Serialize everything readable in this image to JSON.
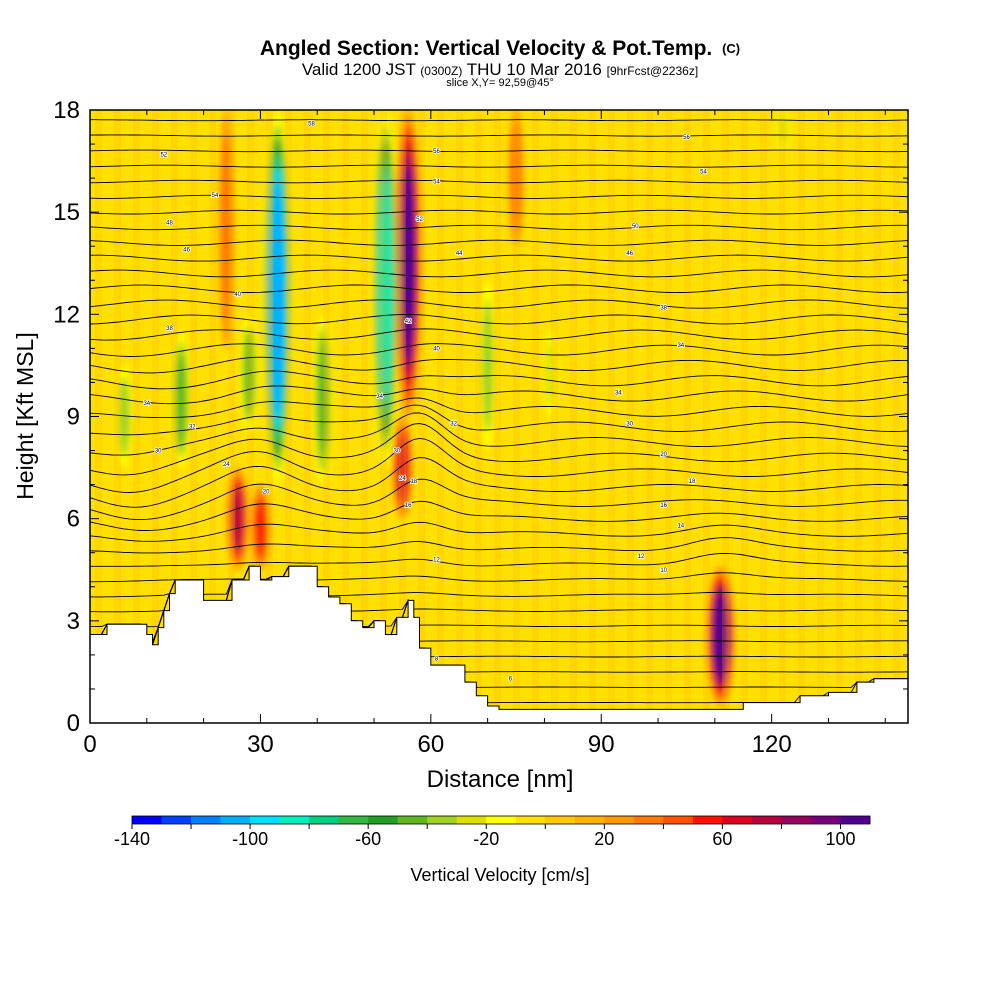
{
  "header": {
    "title": "Angled Section: Vertical Velocity & Pot.Temp.",
    "title_unit": "(C)",
    "valid_prefix": "Valid 1200 JST",
    "valid_utc": "(0300Z)",
    "valid_date": "THU 10 Mar 2016",
    "forecast_tag": "[9hrFcst@2236z]",
    "slice": "slice X,Y= 92,59@45°"
  },
  "chart_data": {
    "type": "heatmap",
    "xlabel": "Distance [nm]",
    "ylabel": "Height [Kft MSL]",
    "xlim": [
      0,
      144
    ],
    "ylim": [
      0,
      18
    ],
    "x_ticks": [
      0,
      30,
      60,
      90,
      120
    ],
    "y_ticks": [
      0,
      3,
      6,
      9,
      12,
      15,
      18
    ],
    "colorbar": {
      "label": "Vertical Velocity [cm/s]",
      "range": [
        -140,
        110
      ],
      "step": 10,
      "tick_values": [
        -140,
        -100,
        -60,
        -20,
        20,
        60,
        100
      ],
      "colors": [
        "#0000ff",
        "#0040ff",
        "#0080ff",
        "#00b0ff",
        "#00e0ff",
        "#00f0c0",
        "#00d080",
        "#30b840",
        "#20a020",
        "#60b820",
        "#a0d020",
        "#e0e000",
        "#ffff00",
        "#ffe000",
        "#ffc800",
        "#ffb000",
        "#ff9800",
        "#ff7800",
        "#ff5000",
        "#ff1000",
        "#e00020",
        "#b80040",
        "#980060",
        "#780080",
        "#500090"
      ]
    },
    "updrafts": [
      {
        "x": 26,
        "y_bottom": 4.5,
        "y_top": 7.5,
        "w": 70
      },
      {
        "x": 30,
        "y_bottom": 4.5,
        "y_top": 7.0,
        "w": 55
      },
      {
        "x": 56,
        "y_bottom": 9.0,
        "y_top": 18.0,
        "w": 100
      },
      {
        "x": 55,
        "y_bottom": 6.0,
        "y_top": 9.0,
        "w": 60
      },
      {
        "x": 111,
        "y_bottom": 0.5,
        "y_top": 4.6,
        "w": 110
      },
      {
        "x": 24,
        "y_bottom": 11.0,
        "y_top": 18.0,
        "w": 30
      },
      {
        "x": 75,
        "y_bottom": 14.0,
        "y_top": 18.0,
        "w": 30
      }
    ],
    "downdrafts": [
      {
        "x": 33,
        "y_bottom": 7.0,
        "y_top": 18.0,
        "w": -110
      },
      {
        "x": 52,
        "y_bottom": 7.5,
        "y_top": 18.0,
        "w": -90
      },
      {
        "x": 16,
        "y_bottom": 7.5,
        "y_top": 11.5,
        "w": -50
      },
      {
        "x": 6,
        "y_bottom": 7.5,
        "y_top": 10.5,
        "w": -40
      },
      {
        "x": 28,
        "y_bottom": 8.5,
        "y_top": 12.0,
        "w": -45
      },
      {
        "x": 41,
        "y_bottom": 7.0,
        "y_top": 12.0,
        "w": -50
      },
      {
        "x": 70,
        "y_bottom": 8.0,
        "y_top": 13.0,
        "w": -40
      },
      {
        "x": 81,
        "y_bottom": 9.0,
        "y_top": 11.5,
        "w": -25
      },
      {
        "x": 122,
        "y_bottom": 16.8,
        "y_top": 18.0,
        "w": -25
      }
    ],
    "terrain": {
      "x": [
        0,
        3,
        8,
        10,
        11,
        12,
        13,
        14,
        15,
        17,
        20,
        22,
        25,
        28,
        30,
        32,
        35,
        37,
        40,
        42,
        44,
        46,
        48,
        50,
        52,
        54,
        56,
        57,
        58,
        60,
        63,
        66,
        68,
        70,
        72,
        75,
        80,
        85,
        90,
        100,
        107,
        109,
        111,
        113,
        115,
        120,
        125,
        130,
        135,
        138,
        144
      ],
      "y": [
        2.6,
        2.9,
        2.9,
        2.6,
        2.3,
        2.8,
        3.3,
        3.8,
        4.2,
        4.2,
        3.6,
        3.6,
        4.2,
        4.6,
        4.2,
        4.3,
        4.6,
        4.6,
        4.0,
        3.7,
        3.5,
        3.0,
        2.8,
        3.0,
        2.6,
        3.1,
        3.6,
        3.1,
        2.2,
        1.7,
        1.7,
        1.2,
        0.8,
        0.5,
        0.4,
        0.4,
        0.4,
        0.4,
        0.4,
        0.4,
        0.4,
        0.4,
        0.4,
        0.4,
        0.6,
        0.6,
        0.8,
        0.9,
        1.2,
        1.3,
        1.3
      ]
    },
    "contour_labels": [
      {
        "x": 13,
        "y": 16.7,
        "text": "52"
      },
      {
        "x": 22,
        "y": 15.5,
        "text": "54"
      },
      {
        "x": 14,
        "y": 14.7,
        "text": "48"
      },
      {
        "x": 17,
        "y": 13.9,
        "text": "46"
      },
      {
        "x": 26,
        "y": 12.6,
        "text": "40"
      },
      {
        "x": 14,
        "y": 11.6,
        "text": "38"
      },
      {
        "x": 10,
        "y": 9.4,
        "text": "34"
      },
      {
        "x": 18,
        "y": 8.7,
        "text": "32"
      },
      {
        "x": 12,
        "y": 8.0,
        "text": "30"
      },
      {
        "x": 24,
        "y": 7.6,
        "text": "24"
      },
      {
        "x": 31,
        "y": 6.8,
        "text": "20"
      },
      {
        "x": 39,
        "y": 17.6,
        "text": "58"
      },
      {
        "x": 61,
        "y": 16.8,
        "text": "56"
      },
      {
        "x": 61,
        "y": 15.9,
        "text": "54"
      },
      {
        "x": 58,
        "y": 14.8,
        "text": "52"
      },
      {
        "x": 65,
        "y": 13.8,
        "text": "44"
      },
      {
        "x": 56,
        "y": 11.8,
        "text": "42"
      },
      {
        "x": 61,
        "y": 11.0,
        "text": "40"
      },
      {
        "x": 51,
        "y": 9.6,
        "text": "34"
      },
      {
        "x": 64,
        "y": 8.8,
        "text": "32"
      },
      {
        "x": 54,
        "y": 8.0,
        "text": "30"
      },
      {
        "x": 55,
        "y": 7.2,
        "text": "24"
      },
      {
        "x": 57,
        "y": 7.1,
        "text": "18"
      },
      {
        "x": 56,
        "y": 6.4,
        "text": "16"
      },
      {
        "x": 61,
        "y": 4.8,
        "text": "12"
      },
      {
        "x": 61,
        "y": 1.9,
        "text": "8"
      },
      {
        "x": 74,
        "y": 1.3,
        "text": "6"
      },
      {
        "x": 105,
        "y": 17.2,
        "text": "56"
      },
      {
        "x": 108,
        "y": 16.2,
        "text": "54"
      },
      {
        "x": 96,
        "y": 14.6,
        "text": "50"
      },
      {
        "x": 95,
        "y": 13.8,
        "text": "46"
      },
      {
        "x": 101,
        "y": 12.2,
        "text": "38"
      },
      {
        "x": 104,
        "y": 11.1,
        "text": "34"
      },
      {
        "x": 93,
        "y": 9.7,
        "text": "34"
      },
      {
        "x": 95,
        "y": 8.8,
        "text": "30"
      },
      {
        "x": 101,
        "y": 7.9,
        "text": "20"
      },
      {
        "x": 106,
        "y": 7.1,
        "text": "18"
      },
      {
        "x": 101,
        "y": 6.4,
        "text": "16"
      },
      {
        "x": 104,
        "y": 5.8,
        "text": "14"
      },
      {
        "x": 97,
        "y": 4.9,
        "text": "12"
      },
      {
        "x": 101,
        "y": 4.5,
        "text": "10"
      }
    ],
    "grid": false
  }
}
